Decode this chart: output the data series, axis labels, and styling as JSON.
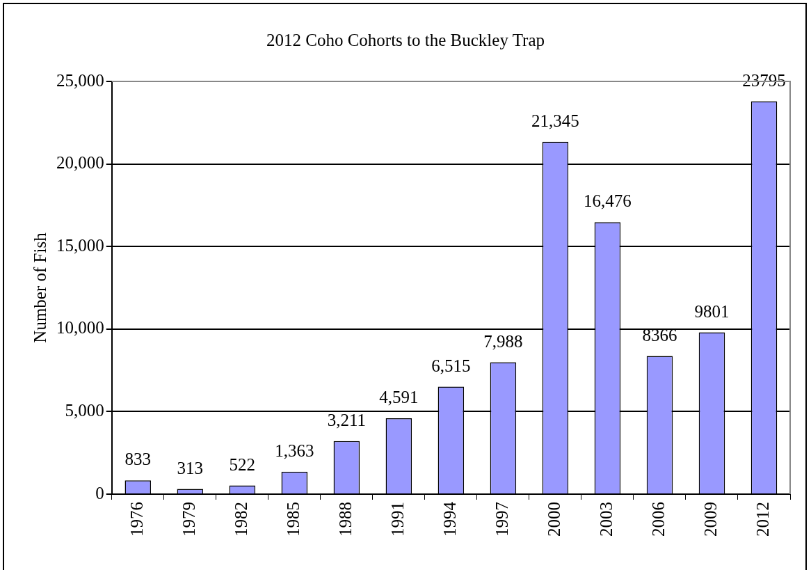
{
  "chart_data": {
    "type": "bar",
    "title": "2012  Coho Cohorts to the Buckley Trap",
    "ylabel": "Number of Fish",
    "categories": [
      "1976",
      "1979",
      "1982",
      "1985",
      "1988",
      "1991",
      "1994",
      "1997",
      "2000",
      "2003",
      "2006",
      "2009",
      "2012"
    ],
    "values": [
      833,
      313,
      522,
      1363,
      3211,
      4591,
      6515,
      7988,
      21345,
      16476,
      8366,
      9801,
      23795
    ],
    "value_labels": [
      "833",
      "313",
      "522",
      "1,363",
      "3,211",
      "4,591",
      "6,515",
      "7,988",
      "21,345",
      "16,476",
      "8366",
      "9801",
      "23795"
    ],
    "color": "#9999ff",
    "ylim": [
      0,
      25000
    ],
    "yticks": [
      {
        "value": 0,
        "label": "0"
      },
      {
        "value": 5000,
        "label": "5,000"
      },
      {
        "value": 10000,
        "label": "10,000"
      },
      {
        "value": 15000,
        "label": "15,000"
      },
      {
        "value": 20000,
        "label": "20,000"
      },
      {
        "value": 25000,
        "label": "25,000"
      }
    ],
    "grid": "y",
    "legend": false
  }
}
